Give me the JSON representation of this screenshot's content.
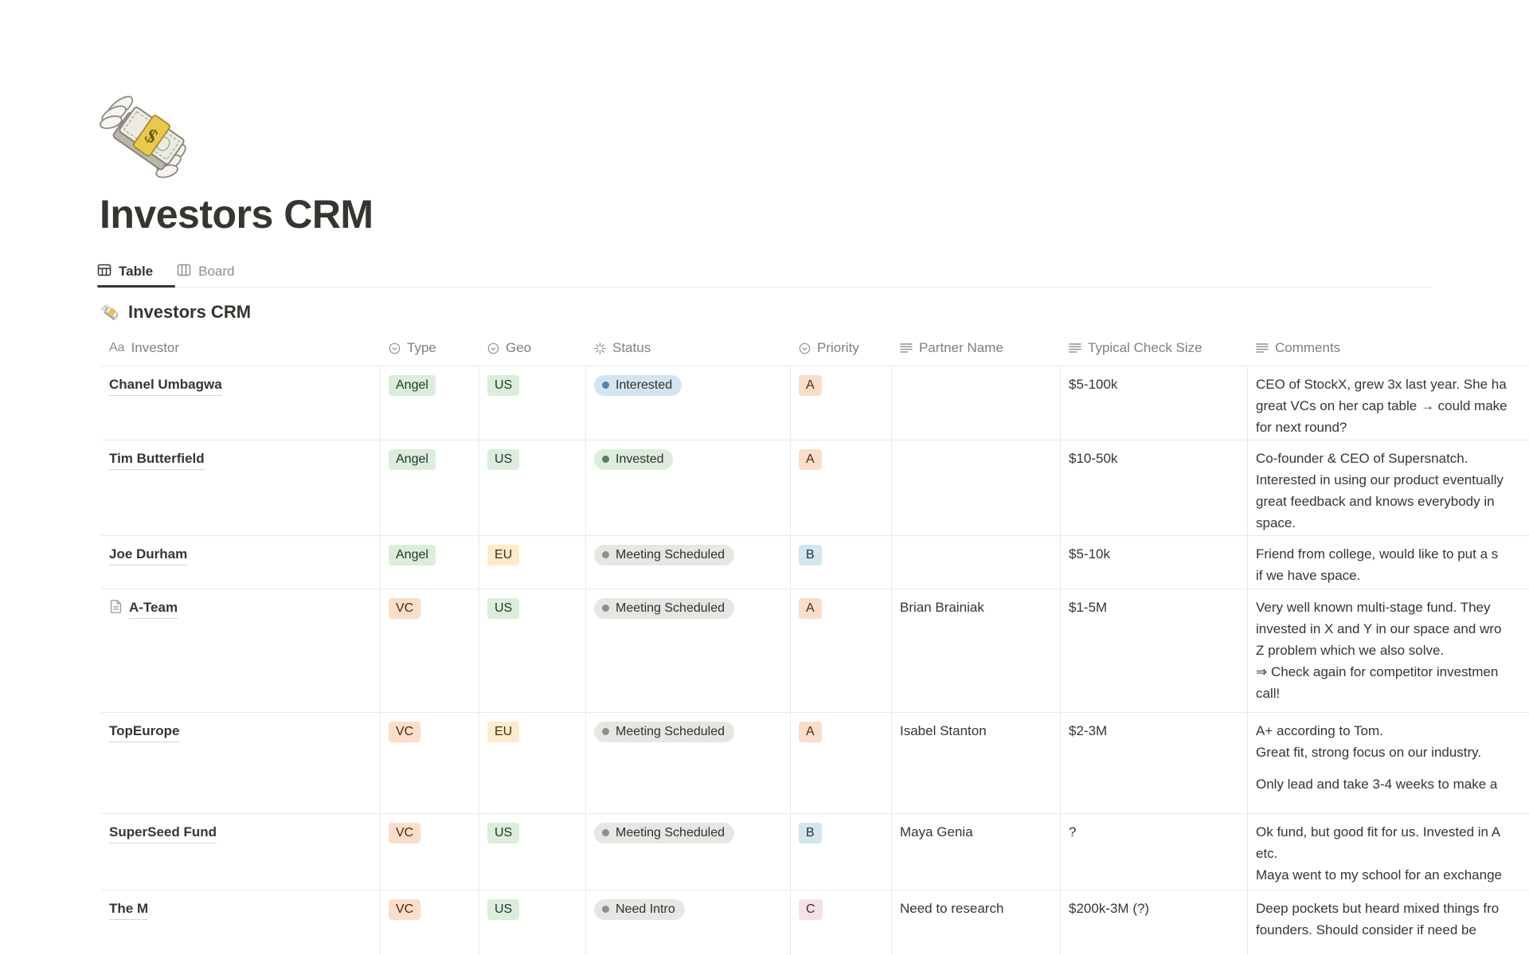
{
  "page": {
    "title": "Investors CRM",
    "emoji": "money-with-wings"
  },
  "tabs": [
    {
      "label": "Table",
      "active": true
    },
    {
      "label": "Board",
      "active": false
    }
  ],
  "section": {
    "emoji": "money-with-wings",
    "title": "Investors CRM"
  },
  "colors": {
    "tag_green": "#DBEDDB",
    "tag_green_text": "#1C3829",
    "tag_yellow": "#FDECC8",
    "tag_yellow_text": "#402C1B",
    "tag_orange": "#FADEC9",
    "tag_orange_text": "#49290E",
    "tag_blue": "#D3E5EF",
    "tag_blue_text": "#183347",
    "tag_pink": "#F5E0E9",
    "tag_pink_text": "#4A2531",
    "tag_gray": "#E7E6E3",
    "tag_gray_text": "#32302C",
    "dot_blue": "#4C89B0",
    "dot_green": "#548164",
    "dot_gray": "#8F8E8B"
  },
  "table": {
    "columns": [
      {
        "key": "investor",
        "label": "Investor",
        "icon": "title-icon"
      },
      {
        "key": "type",
        "label": "Type",
        "icon": "select-icon"
      },
      {
        "key": "geo",
        "label": "Geo",
        "icon": "select-icon"
      },
      {
        "key": "status",
        "label": "Status",
        "icon": "status-icon"
      },
      {
        "key": "priority",
        "label": "Priority",
        "icon": "select-icon"
      },
      {
        "key": "partner",
        "label": "Partner Name",
        "icon": "text-icon"
      },
      {
        "key": "check",
        "label": "Typical Check Size",
        "icon": "text-icon"
      },
      {
        "key": "comments",
        "label": "Comments",
        "icon": "text-icon"
      }
    ],
    "rows": [
      {
        "investor": "Chanel Umbagwa",
        "has_page_icon": false,
        "type": {
          "label": "Angel",
          "color": "green"
        },
        "geo": {
          "label": "US",
          "color": "green"
        },
        "status": {
          "label": "Interested",
          "color": "blue",
          "dot": "blue"
        },
        "priority": {
          "label": "A",
          "color": "orange"
        },
        "partner": "",
        "check": "$5-100k",
        "comments": [
          "CEO of StockX, grew 3x last year. She ha",
          "great VCs on her cap table → could make",
          "for next round?"
        ]
      },
      {
        "investor": "Tim Butterfield",
        "has_page_icon": false,
        "type": {
          "label": "Angel",
          "color": "green"
        },
        "geo": {
          "label": "US",
          "color": "green"
        },
        "status": {
          "label": "Invested",
          "color": "green",
          "dot": "green"
        },
        "priority": {
          "label": "A",
          "color": "orange"
        },
        "partner": "",
        "check": "$10-50k",
        "comments": [
          "Co-founder & CEO of Supersnatch.",
          "Interested in using our product eventually",
          "great feedback and knows everybody in",
          "space."
        ]
      },
      {
        "investor": "Joe Durham",
        "has_page_icon": false,
        "type": {
          "label": "Angel",
          "color": "green"
        },
        "geo": {
          "label": "EU",
          "color": "yellow"
        },
        "status": {
          "label": "Meeting Scheduled",
          "color": "gray",
          "dot": "gray"
        },
        "priority": {
          "label": "B",
          "color": "blue"
        },
        "partner": "",
        "check": "$5-10k",
        "comments": [
          "Friend from college, would like to put a s",
          "if we have space."
        ]
      },
      {
        "investor": "A-Team",
        "has_page_icon": true,
        "type": {
          "label": "VC",
          "color": "orange"
        },
        "geo": {
          "label": "US",
          "color": "green"
        },
        "status": {
          "label": "Meeting Scheduled",
          "color": "gray",
          "dot": "gray"
        },
        "priority": {
          "label": "A",
          "color": "orange"
        },
        "partner": "Brian Brainiak",
        "check": "$1-5M",
        "comments": [
          "Very well known multi-stage fund. They",
          "invested in X and Y in our space and wro",
          "Z problem which we also solve.",
          "⇒ Check again for competitor investmen",
          "call!"
        ]
      },
      {
        "investor": "TopEurope",
        "has_page_icon": false,
        "type": {
          "label": "VC",
          "color": "orange"
        },
        "geo": {
          "label": "EU",
          "color": "yellow"
        },
        "status": {
          "label": "Meeting Scheduled",
          "color": "gray",
          "dot": "gray"
        },
        "priority": {
          "label": "A",
          "color": "orange"
        },
        "partner": "Isabel Stanton",
        "check": "$2-3M",
        "comments": [
          "A+ according to Tom.",
          "Great fit, strong focus on our industry.",
          "",
          "Only lead and take 3-4 weeks to make a"
        ]
      },
      {
        "investor": "SuperSeed Fund",
        "has_page_icon": false,
        "type": {
          "label": "VC",
          "color": "orange"
        },
        "geo": {
          "label": "US",
          "color": "green"
        },
        "status": {
          "label": "Meeting Scheduled",
          "color": "gray",
          "dot": "gray"
        },
        "priority": {
          "label": "B",
          "color": "blue"
        },
        "partner": "Maya Genia",
        "check": "?",
        "comments": [
          "Ok fund, but good fit for us. Invested in A",
          "etc.",
          "Maya went to my school for an exchange"
        ]
      },
      {
        "investor": "The M",
        "has_page_icon": false,
        "type": {
          "label": "VC",
          "color": "orange"
        },
        "geo": {
          "label": "US",
          "color": "green"
        },
        "status": {
          "label": "Need Intro",
          "color": "gray",
          "dot": "gray"
        },
        "priority": {
          "label": "C",
          "color": "pink"
        },
        "partner": "Need to research",
        "check": "$200k-3M (?)",
        "comments": [
          "Deep pockets but heard mixed things fro",
          "founders. Should consider if need be"
        ]
      }
    ]
  }
}
